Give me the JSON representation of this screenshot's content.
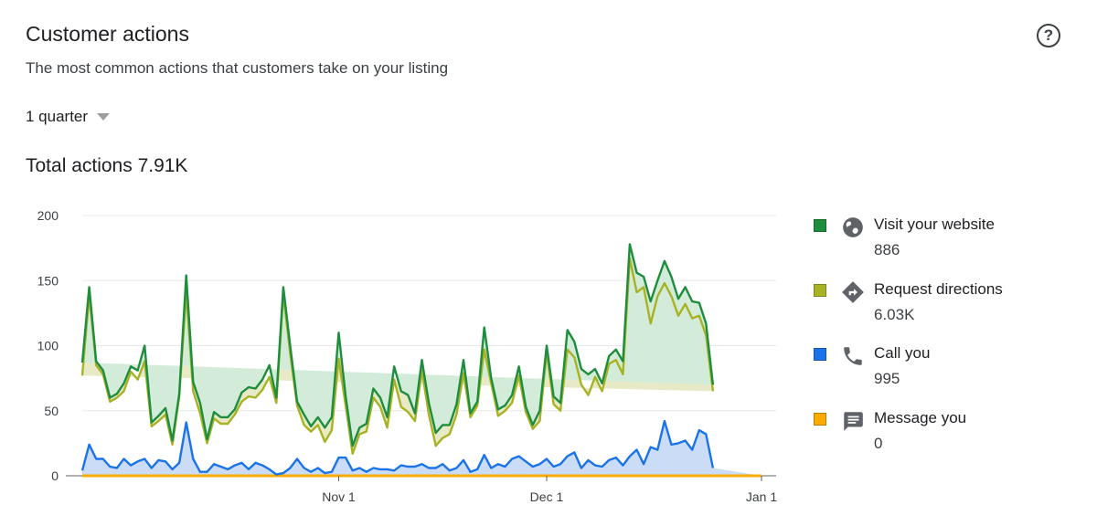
{
  "header": {
    "title": "Customer actions",
    "subtitle": "The most common actions that customers take on your listing",
    "help_icon": "question-circle-icon",
    "help_label": "?",
    "period": "1 quarter",
    "total": "Total actions 7.91K"
  },
  "legend": [
    {
      "name": "Visit your website",
      "value": "886",
      "color": "#1e8e3e",
      "icon": "globe-icon"
    },
    {
      "name": "Request directions",
      "value": "6.03K",
      "color": "#a8b225",
      "icon": "directions-icon"
    },
    {
      "name": "Call you",
      "value": "995",
      "color": "#1a73e8",
      "icon": "phone-icon"
    },
    {
      "name": "Message you",
      "value": "0",
      "color": "#f9ab00",
      "icon": "message-icon"
    }
  ],
  "chart_data": {
    "type": "area",
    "stacked": true,
    "ylim": [
      0,
      200
    ],
    "yticks": [
      0,
      50,
      100,
      150,
      200
    ],
    "xticks": [
      {
        "label": "Nov 1",
        "index": 37
      },
      {
        "label": "Dec 1",
        "index": 67
      },
      {
        "label": "Jan 1",
        "index": 98
      }
    ],
    "grid": true,
    "legend_position": "right",
    "series": [
      {
        "name": "Message you",
        "color": "#f9ab00",
        "values": [
          0,
          0,
          0,
          0,
          0,
          0,
          0,
          0,
          0,
          0,
          0,
          0,
          0,
          0,
          0,
          0,
          0,
          0,
          0,
          0,
          0,
          0,
          0,
          0,
          0,
          0,
          0,
          0,
          0,
          0,
          0,
          0,
          0,
          0,
          0,
          0,
          0,
          0,
          0,
          0,
          0,
          0,
          0,
          0,
          0,
          0,
          0,
          0,
          0,
          0,
          0,
          0,
          0,
          0,
          0,
          0,
          0,
          0,
          0,
          0,
          0,
          0,
          0,
          0,
          0,
          0,
          0,
          0,
          0,
          0,
          0,
          0,
          0,
          0,
          0,
          0,
          0,
          0,
          0,
          0,
          0,
          0,
          0,
          0,
          0,
          0,
          0,
          0,
          0,
          0,
          0,
          0,
          0,
          0,
          0,
          0,
          0,
          0,
          0
        ]
      },
      {
        "name": "Call you",
        "color": "#1a73e8",
        "values": [
          4,
          24,
          13,
          13,
          7,
          6,
          13,
          8,
          11,
          13,
          6,
          12,
          11,
          5,
          10,
          41,
          13,
          3,
          3,
          9,
          7,
          5,
          8,
          10,
          5,
          10,
          8,
          5,
          1,
          2,
          6,
          13,
          6,
          3,
          6,
          2,
          3,
          14,
          14,
          4,
          6,
          3,
          6,
          5,
          5,
          4,
          8,
          7,
          7,
          9,
          6,
          6,
          9,
          4,
          6,
          12,
          3,
          5,
          16,
          6,
          9,
          7,
          13,
          15,
          11,
          7,
          9,
          13,
          7,
          9,
          15,
          18,
          6,
          12,
          8,
          7,
          12,
          14,
          8,
          15,
          20,
          9,
          22,
          20,
          42,
          24,
          25,
          27,
          20,
          35,
          32,
          6
        ]
      },
      {
        "name": "Request directions",
        "color": "#a8b225",
        "values": [
          73,
          115,
          72,
          65,
          50,
          54,
          52,
          72,
          63,
          75,
          32,
          30,
          36,
          19,
          51,
          100,
          52,
          45,
          22,
          35,
          33,
          35,
          39,
          47,
          56,
          50,
          58,
          71,
          55,
          138,
          88,
          41,
          33,
          31,
          33,
          24,
          32,
          76,
          40,
          13,
          26,
          31,
          54,
          48,
          32,
          70,
          45,
          42,
          35,
          72,
          41,
          17,
          20,
          28,
          41,
          67,
          42,
          49,
          81,
          65,
          37,
          43,
          43,
          62,
          38,
          29,
          33,
          82,
          48,
          41,
          82,
          73,
          64,
          50,
          68,
          58,
          74,
          75,
          70,
          152,
          121,
          136,
          95,
          118,
          106,
          114,
          98,
          105,
          101,
          88,
          76,
          59
        ]
      },
      {
        "name": "Visit your website",
        "color": "#1e8e3e",
        "values": [
          10,
          6,
          3,
          3,
          3,
          3,
          6,
          4,
          7,
          12,
          3,
          4,
          5,
          3,
          2,
          13,
          7,
          8,
          3,
          5,
          5,
          5,
          4,
          7,
          7,
          7,
          8,
          9,
          4,
          5,
          6,
          3,
          8,
          4,
          6,
          11,
          10,
          20,
          7,
          6,
          5,
          6,
          7,
          7,
          8,
          10,
          12,
          13,
          6,
          8,
          9,
          10,
          10,
          7,
          8,
          10,
          3,
          3,
          17,
          4,
          5,
          4,
          6,
          7,
          4,
          3,
          8,
          5,
          6,
          6,
          15,
          12,
          12,
          16,
          6,
          6,
          6,
          8,
          10,
          11,
          15,
          8,
          17,
          12,
          17,
          15,
          13,
          13,
          13,
          10,
          9,
          5
        ]
      }
    ]
  }
}
